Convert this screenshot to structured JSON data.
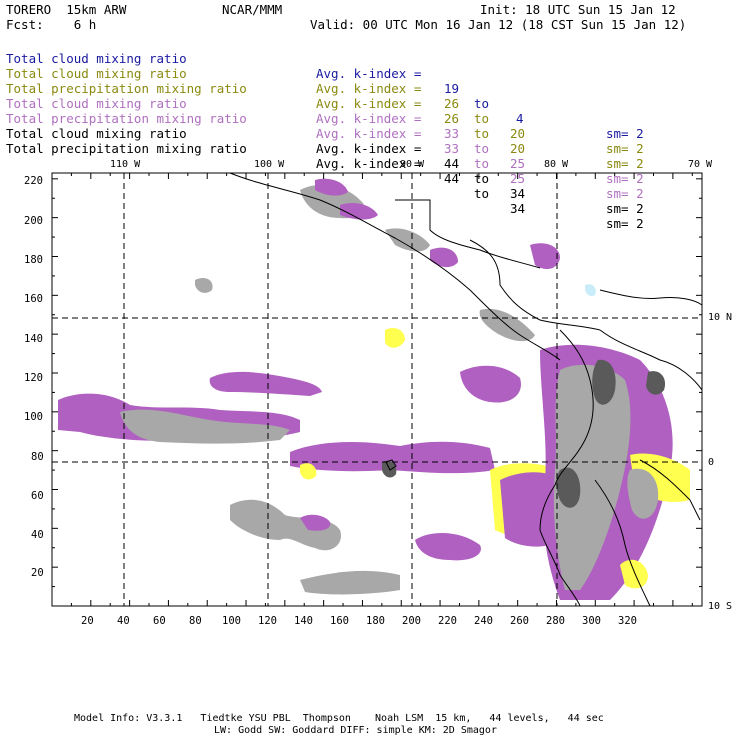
{
  "header": {
    "model": "TORERO  15km ARW",
    "org": "NCAR/MMM",
    "init": "Init: 18 UTC Sun 15 Jan 12",
    "fcst": "Fcst:    6 h",
    "valid": "Valid: 00 UTC Mon 16 Jan 12 (18 CST Sun 15 Jan 12)"
  },
  "legend": [
    {
      "name": "Total cloud mixing ratio",
      "kidx": "Avg. k-index =",
      "from": "19",
      "to": "to",
      "end": "4",
      "sm": "sm= 2",
      "color": "#1a1aa0"
    },
    {
      "name": "Total cloud mixing ratio",
      "kidx": "Avg. k-index =",
      "from": "26",
      "to": "to",
      "end": "20",
      "sm": "sm= 2",
      "color": "#8a8a10"
    },
    {
      "name": "Total precipitation mixing ratio",
      "kidx": "Avg. k-index =",
      "from": "26",
      "to": "to",
      "end": "20",
      "sm": "sm= 2",
      "color": "#8a8a10"
    },
    {
      "name": "Total cloud mixing ratio",
      "kidx": "Avg. k-index =",
      "from": "33",
      "to": "to",
      "end": "25",
      "sm": "sm= 2",
      "color": "#b070c0"
    },
    {
      "name": "Total precipitation mixing ratio",
      "kidx": "Avg. k-index =",
      "from": "33",
      "to": "to",
      "end": "25",
      "sm": "sm= 2",
      "color": "#b070c0"
    },
    {
      "name": "Total cloud mixing ratio",
      "kidx": "Avg. k-index =",
      "from": "44",
      "to": "to",
      "end": "34",
      "sm": "sm= 2",
      "color": "#000000"
    },
    {
      "name": "Total precipitation mixing ratio",
      "kidx": "Avg. k-index =",
      "from": "44",
      "to": "to",
      "end": "34",
      "sm": "sm= 2",
      "color": "#000000"
    }
  ],
  "axes": {
    "lon_labels": [
      "110 W",
      "100 W",
      "90 W",
      "80 W",
      "70 W"
    ],
    "lat_labels": [
      "10 N",
      "0",
      "10 S"
    ],
    "x_ticks": [
      "20",
      "40",
      "60",
      "80",
      "100",
      "120",
      "140",
      "160",
      "180",
      "200",
      "220",
      "240",
      "260",
      "280",
      "300",
      "320"
    ],
    "y_ticks": [
      "220",
      "200",
      "180",
      "160",
      "140",
      "120",
      "100",
      "80",
      "60",
      "40",
      "20"
    ]
  },
  "colors": {
    "cloud_light": "#a8a8a8",
    "cloud_dark": "#5a5a5a",
    "purple": "#b060c0",
    "yellow": "#ffff50",
    "cyan": "#c8ecf8"
  },
  "footer": {
    "line1": "Model Info: V3.3.1   Tiedtke YSU PBL  Thompson    Noah LSM  15 km,   44 levels,   44 sec",
    "line2": "LW: Godd SW: Goddard DIFF: simple KM: 2D Smagor"
  }
}
